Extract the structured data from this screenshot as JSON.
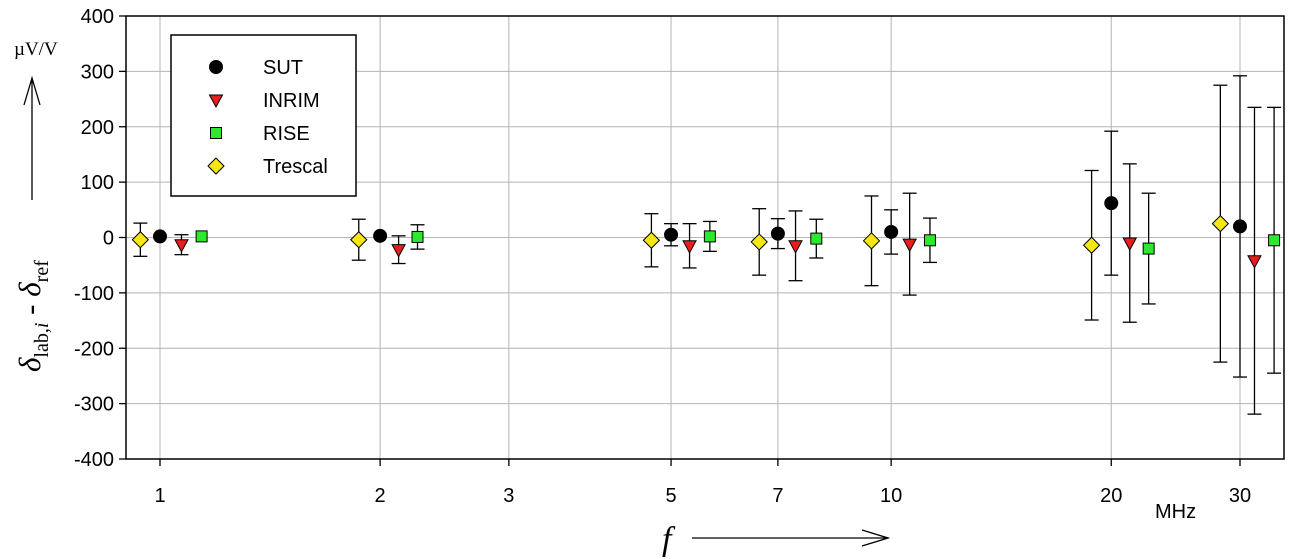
{
  "chart_data": {
    "type": "scatter",
    "x_scale": "log",
    "x_ticks": [
      1,
      2,
      3,
      5,
      7,
      10,
      20,
      30
    ],
    "x_tick_labels": [
      "1",
      "2",
      "3",
      "5",
      "7",
      "10",
      "20",
      "30"
    ],
    "x_unit": "MHz",
    "x_label": "f",
    "y_ticks": [
      400,
      300,
      200,
      100,
      0,
      -100,
      -200,
      -300,
      -400
    ],
    "y_tick_labels": [
      "400",
      "300",
      "200",
      "100",
      "0",
      "-100",
      "-200",
      "-300",
      "-400"
    ],
    "ylim": [
      -400,
      400
    ],
    "y_unit": "µV/V",
    "y_label": {
      "d1": "δ",
      "s1": "lab,",
      "i": "i",
      "minus": " - ",
      "d2": "δ",
      "s2": "ref"
    },
    "grid": true,
    "legend_position": "top-left",
    "series": [
      {
        "name": "SUT",
        "marker": "circle",
        "color": "#000000",
        "points": [
          {
            "x": 1,
            "y": 2
          },
          {
            "x": 2,
            "y": 3
          },
          {
            "x": 5,
            "y": 5,
            "err": 20
          },
          {
            "x": 7,
            "y": 7,
            "err": 27
          },
          {
            "x": 10,
            "y": 10,
            "err": 40
          },
          {
            "x": 20,
            "y": 62,
            "err": 130
          },
          {
            "x": 30,
            "y": 20,
            "err": 272
          }
        ]
      },
      {
        "name": "INRIM",
        "marker": "triangle-down",
        "color": "#e61e1e",
        "points": [
          {
            "x": 1.07,
            "y": -13,
            "err": 18
          },
          {
            "x": 2.12,
            "y": -22,
            "err": 25
          },
          {
            "x": 5.3,
            "y": -15,
            "err": 40
          },
          {
            "x": 7.4,
            "y": -15,
            "err": 63
          },
          {
            "x": 10.6,
            "y": -12,
            "err": 92
          },
          {
            "x": 21.2,
            "y": -10,
            "err": 143
          },
          {
            "x": 31.4,
            "y": -42,
            "err": 277
          }
        ]
      },
      {
        "name": "RISE",
        "marker": "square",
        "color": "#2ee82e",
        "points": [
          {
            "x": 1.14,
            "y": 2
          },
          {
            "x": 2.25,
            "y": 1,
            "err": 22
          },
          {
            "x": 5.65,
            "y": 2,
            "err": 27
          },
          {
            "x": 7.9,
            "y": -2,
            "err": 35
          },
          {
            "x": 11.3,
            "y": -5,
            "err": 40
          },
          {
            "x": 22.5,
            "y": -20,
            "err": 100
          },
          {
            "x": 33.4,
            "y": -5,
            "err": 240
          }
        ]
      },
      {
        "name": "Trescal",
        "marker": "diamond",
        "color": "#f5e614",
        "points": [
          {
            "x": 0.94,
            "y": -4,
            "err": 30
          },
          {
            "x": 1.87,
            "y": -4,
            "err": 37
          },
          {
            "x": 4.7,
            "y": -5,
            "err": 48
          },
          {
            "x": 6.6,
            "y": -8,
            "err": 60
          },
          {
            "x": 9.4,
            "y": -6,
            "err": 81
          },
          {
            "x": 18.8,
            "y": -14,
            "err": 135
          },
          {
            "x": 28.2,
            "y": 25,
            "err": 250
          }
        ]
      }
    ]
  }
}
